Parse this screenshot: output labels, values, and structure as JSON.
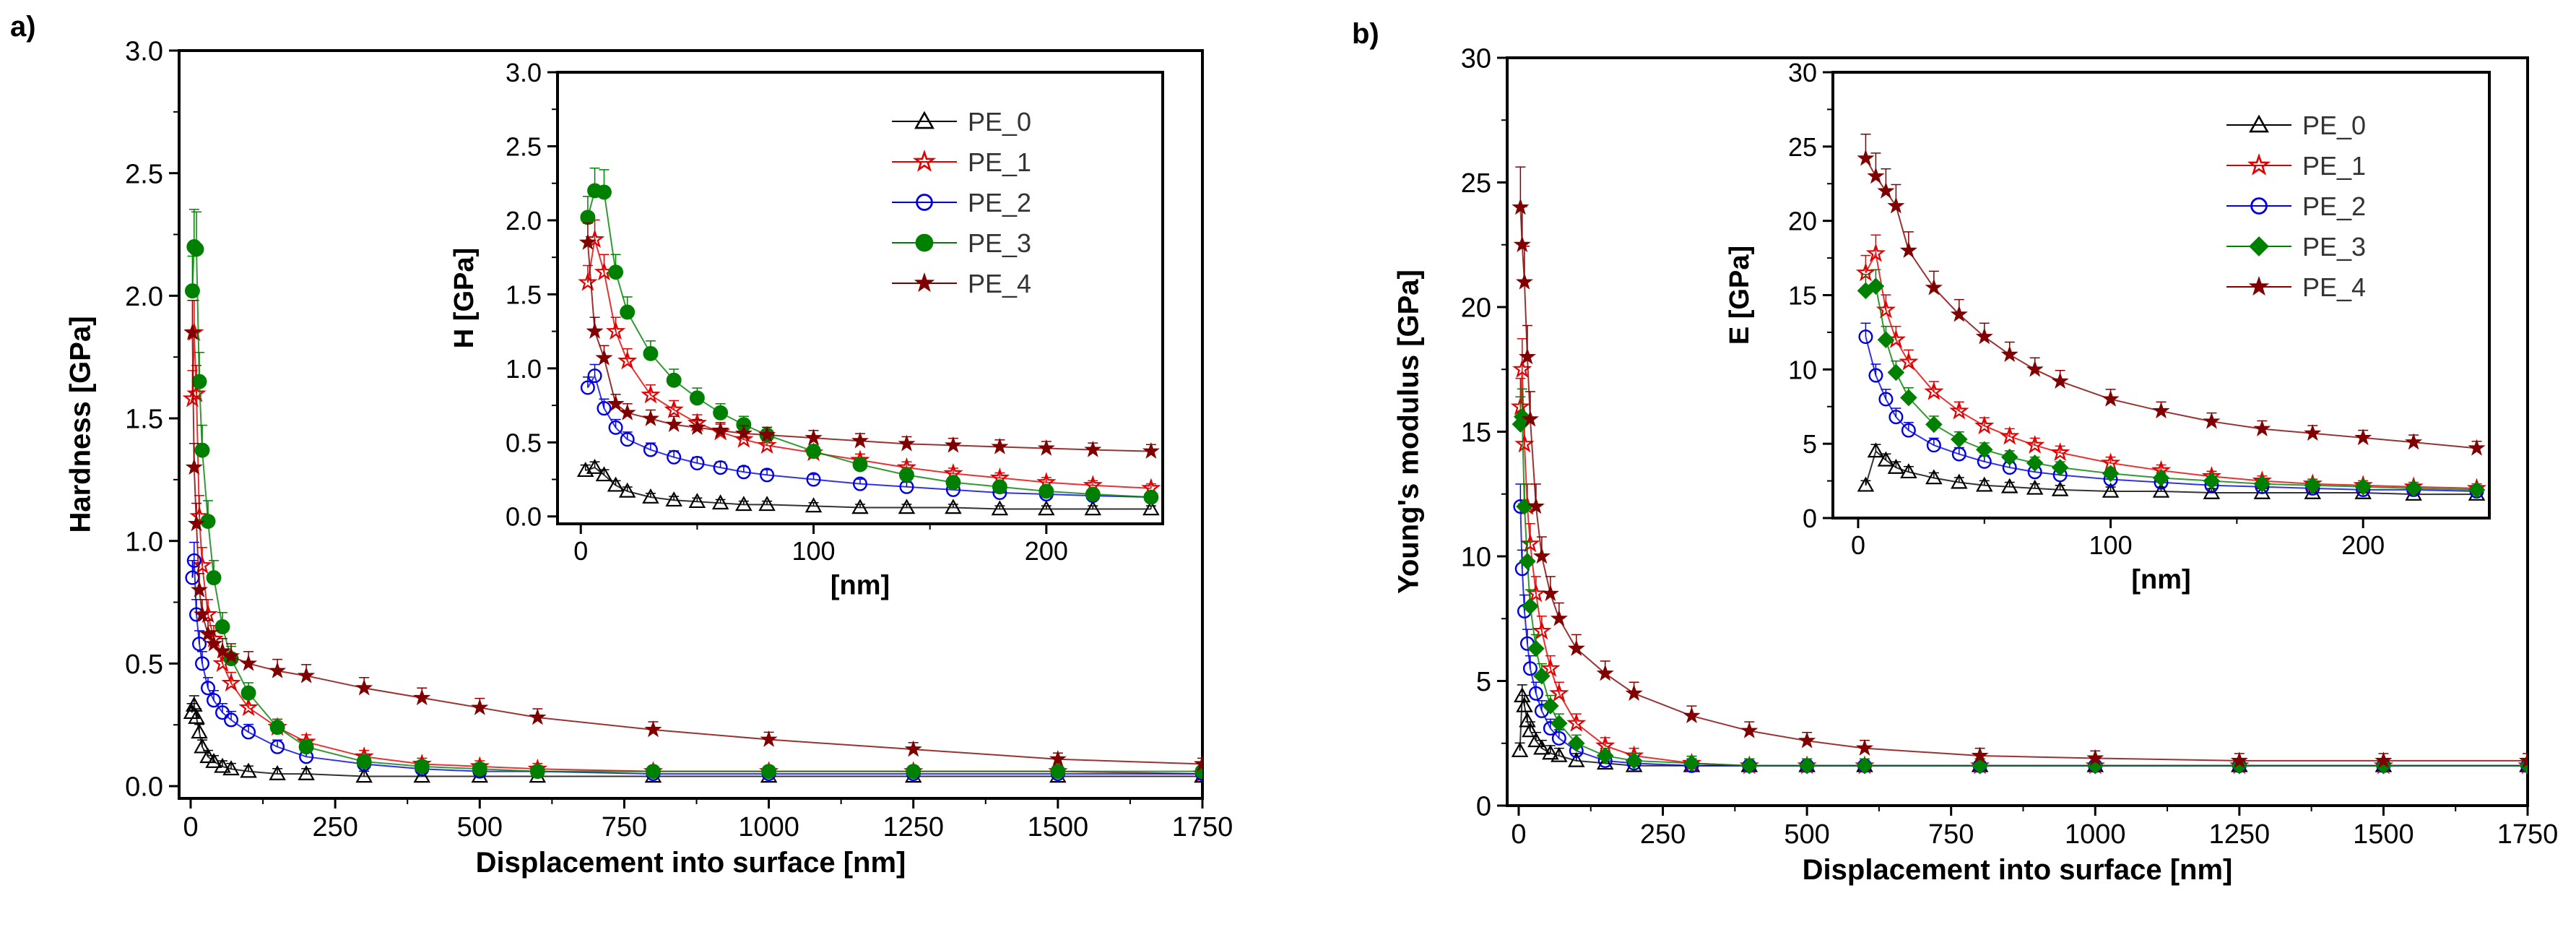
{
  "panels": [
    {
      "id": "a",
      "label": "a)"
    },
    {
      "id": "b",
      "label": "b)"
    }
  ],
  "legend_items": [
    {
      "name": "PE_0",
      "color": "#000000",
      "marker": "triangle-open-icon"
    },
    {
      "name": "PE_1",
      "color": "#e00000",
      "marker": "star-open-icon"
    },
    {
      "name": "PE_2",
      "color": "#0000e0",
      "marker": "circle-open-icon"
    },
    {
      "name": "PE_3",
      "color": "#008000",
      "marker": "circle-filled-icon"
    },
    {
      "name": "PE_4",
      "color": "#800000",
      "marker": "star-filled-icon"
    }
  ],
  "chart_data": [
    {
      "type": "scatter",
      "panel": "a",
      "title": "",
      "xlabel": "Displacement into surface [nm]",
      "ylabel": "Hardness [GPa]",
      "xlim": [
        -20,
        1750
      ],
      "ylim": [
        -0.05,
        3.0
      ],
      "xticks": [
        "0",
        "250",
        "500",
        "750",
        "1000",
        "1250",
        "1500",
        "1750"
      ],
      "yticks": [
        "0.0",
        "0.5",
        "1.0",
        "1.5",
        "2.0",
        "2.5",
        "3.0"
      ],
      "series": [
        {
          "name": "PE_0",
          "x": [
            2,
            6,
            10,
            15,
            20,
            30,
            40,
            55,
            70,
            100,
            150,
            200,
            300,
            400,
            500,
            600,
            800,
            1000,
            1250,
            1500,
            1750
          ],
          "y": [
            0.3,
            0.33,
            0.28,
            0.22,
            0.16,
            0.12,
            0.1,
            0.08,
            0.07,
            0.06,
            0.05,
            0.05,
            0.04,
            0.04,
            0.04,
            0.04,
            0.04,
            0.04,
            0.04,
            0.04,
            0.04
          ]
        },
        {
          "name": "PE_1",
          "x": [
            3,
            6,
            10,
            15,
            20,
            30,
            40,
            55,
            70,
            100,
            150,
            200,
            300,
            400,
            500,
            600,
            800,
            1000,
            1250,
            1500,
            1750
          ],
          "y": [
            1.58,
            1.85,
            1.6,
            1.1,
            0.9,
            0.7,
            0.6,
            0.5,
            0.42,
            0.32,
            0.24,
            0.18,
            0.12,
            0.09,
            0.08,
            0.07,
            0.06,
            0.06,
            0.06,
            0.06,
            0.05
          ]
        },
        {
          "name": "PE_2",
          "x": [
            3,
            6,
            10,
            15,
            20,
            30,
            40,
            55,
            70,
            100,
            150,
            200,
            300,
            400,
            500,
            600,
            800,
            1000,
            1250,
            1500,
            1750
          ],
          "y": [
            0.85,
            0.92,
            0.7,
            0.58,
            0.5,
            0.4,
            0.35,
            0.3,
            0.27,
            0.22,
            0.16,
            0.12,
            0.09,
            0.07,
            0.06,
            0.06,
            0.05,
            0.05,
            0.05,
            0.05,
            0.05
          ]
        },
        {
          "name": "PE_3",
          "x": [
            3,
            6,
            10,
            15,
            20,
            30,
            40,
            55,
            70,
            100,
            150,
            200,
            300,
            400,
            500,
            600,
            800,
            1000,
            1250,
            1500,
            1750
          ],
          "y": [
            2.02,
            2.2,
            2.19,
            1.65,
            1.37,
            1.08,
            0.85,
            0.65,
            0.52,
            0.38,
            0.24,
            0.16,
            0.1,
            0.08,
            0.07,
            0.06,
            0.06,
            0.06,
            0.06,
            0.06,
            0.06
          ]
        },
        {
          "name": "PE_4",
          "x": [
            3,
            6,
            10,
            15,
            20,
            30,
            40,
            55,
            70,
            100,
            150,
            200,
            300,
            400,
            500,
            600,
            800,
            1000,
            1250,
            1500,
            1750
          ],
          "y": [
            1.85,
            1.3,
            1.07,
            0.8,
            0.7,
            0.62,
            0.58,
            0.55,
            0.53,
            0.5,
            0.47,
            0.45,
            0.4,
            0.36,
            0.32,
            0.28,
            0.23,
            0.19,
            0.15,
            0.11,
            0.09
          ]
        }
      ],
      "inset": {
        "xlabel": "[nm]",
        "ylabel": "H [GPa]",
        "xlim": [
          -10,
          250
        ],
        "ylim": [
          -0.05,
          3.0
        ],
        "xticks": [
          "0",
          "100",
          "200"
        ],
        "yticks": [
          "0.0",
          "0.5",
          "1.0",
          "1.5",
          "2.0",
          "2.5",
          "3.0"
        ],
        "series": [
          {
            "name": "PE_0",
            "x": [
              2,
              6,
              10,
              15,
              20,
              30,
              40,
              50,
              60,
              70,
              80,
              100,
              120,
              140,
              160,
              180,
              200,
              220,
              245
            ],
            "y": [
              0.31,
              0.33,
              0.28,
              0.21,
              0.17,
              0.13,
              0.11,
              0.1,
              0.09,
              0.08,
              0.08,
              0.07,
              0.06,
              0.06,
              0.06,
              0.05,
              0.05,
              0.05,
              0.05
            ]
          },
          {
            "name": "PE_1",
            "x": [
              3,
              6,
              10,
              15,
              20,
              30,
              40,
              50,
              60,
              70,
              80,
              100,
              120,
              140,
              160,
              180,
              200,
              220,
              245
            ],
            "y": [
              1.58,
              1.87,
              1.65,
              1.25,
              1.05,
              0.82,
              0.72,
              0.63,
              0.57,
              0.52,
              0.48,
              0.43,
              0.38,
              0.33,
              0.29,
              0.26,
              0.23,
              0.21,
              0.19
            ]
          },
          {
            "name": "PE_2",
            "x": [
              3,
              6,
              10,
              15,
              20,
              30,
              40,
              50,
              60,
              70,
              80,
              100,
              120,
              140,
              160,
              180,
              200,
              220,
              245
            ],
            "y": [
              0.87,
              0.95,
              0.73,
              0.6,
              0.52,
              0.45,
              0.4,
              0.36,
              0.33,
              0.3,
              0.28,
              0.25,
              0.22,
              0.2,
              0.18,
              0.16,
              0.15,
              0.14,
              0.13
            ]
          },
          {
            "name": "PE_3",
            "x": [
              3,
              6,
              10,
              15,
              20,
              30,
              40,
              50,
              60,
              70,
              80,
              100,
              120,
              140,
              160,
              180,
              200,
              220,
              245
            ],
            "y": [
              2.02,
              2.2,
              2.19,
              1.65,
              1.38,
              1.1,
              0.92,
              0.8,
              0.7,
              0.62,
              0.55,
              0.44,
              0.35,
              0.28,
              0.23,
              0.2,
              0.17,
              0.15,
              0.13
            ]
          },
          {
            "name": "PE_4",
            "x": [
              3,
              6,
              10,
              15,
              20,
              30,
              40,
              50,
              60,
              70,
              80,
              100,
              120,
              140,
              160,
              180,
              200,
              220,
              245
            ],
            "y": [
              1.85,
              1.25,
              1.07,
              0.76,
              0.7,
              0.66,
              0.62,
              0.6,
              0.58,
              0.56,
              0.55,
              0.53,
              0.51,
              0.49,
              0.48,
              0.47,
              0.46,
              0.45,
              0.44
            ]
          }
        ]
      }
    },
    {
      "type": "scatter",
      "panel": "b",
      "title": "",
      "xlabel": "Displacement into surface [nm]",
      "ylabel": "Young's modulus [GPa]",
      "xlim": [
        -20,
        1750
      ],
      "ylim": [
        0,
        30
      ],
      "xticks": [
        "0",
        "250",
        "500",
        "750",
        "1000",
        "1250",
        "1500",
        "1750"
      ],
      "yticks": [
        "0",
        "5",
        "10",
        "15",
        "20",
        "25",
        "30"
      ],
      "series": [
        {
          "name": "PE_0",
          "x": [
            2,
            6,
            10,
            15,
            20,
            30,
            40,
            55,
            70,
            100,
            150,
            200,
            300,
            400,
            500,
            600,
            800,
            1000,
            1250,
            1500,
            1750
          ],
          "y": [
            2.2,
            4.4,
            4.0,
            3.4,
            3.0,
            2.6,
            2.3,
            2.1,
            2.0,
            1.8,
            1.7,
            1.6,
            1.6,
            1.6,
            1.6,
            1.6,
            1.6,
            1.6,
            1.6,
            1.6,
            1.6
          ]
        },
        {
          "name": "PE_1",
          "x": [
            3,
            6,
            10,
            15,
            20,
            30,
            40,
            55,
            70,
            100,
            150,
            200,
            300,
            400,
            500,
            600,
            800,
            1000,
            1250,
            1500,
            1750
          ],
          "y": [
            16.0,
            17.5,
            14.5,
            12.0,
            10.5,
            8.5,
            7.0,
            5.5,
            4.5,
            3.3,
            2.4,
            2.0,
            1.7,
            1.6,
            1.6,
            1.6,
            1.6,
            1.6,
            1.6,
            1.6,
            1.6
          ]
        },
        {
          "name": "PE_2",
          "x": [
            3,
            6,
            10,
            15,
            20,
            30,
            40,
            55,
            70,
            100,
            150,
            200,
            300,
            400,
            500,
            600,
            800,
            1000,
            1250,
            1500,
            1750
          ],
          "y": [
            12.0,
            9.5,
            7.8,
            6.5,
            5.5,
            4.5,
            3.8,
            3.1,
            2.7,
            2.2,
            1.8,
            1.7,
            1.6,
            1.6,
            1.6,
            1.6,
            1.6,
            1.6,
            1.6,
            1.6,
            1.6
          ]
        },
        {
          "name": "PE_3",
          "x": [
            3,
            6,
            10,
            15,
            20,
            30,
            40,
            55,
            70,
            100,
            150,
            200,
            300,
            400,
            500,
            600,
            800,
            1000,
            1250,
            1500,
            1750
          ],
          "y": [
            15.3,
            15.6,
            12.0,
            9.8,
            8.0,
            6.3,
            5.2,
            4.0,
            3.3,
            2.5,
            2.0,
            1.8,
            1.7,
            1.6,
            1.6,
            1.6,
            1.6,
            1.6,
            1.6,
            1.6,
            1.6
          ]
        },
        {
          "name": "PE_4",
          "x": [
            3,
            6,
            10,
            15,
            20,
            30,
            40,
            55,
            70,
            100,
            150,
            200,
            300,
            400,
            500,
            600,
            800,
            1000,
            1250,
            1500,
            1750
          ],
          "y": [
            24.0,
            22.5,
            21.0,
            18.0,
            15.5,
            12.0,
            10.0,
            8.5,
            7.5,
            6.3,
            5.3,
            4.5,
            3.6,
            3.0,
            2.6,
            2.3,
            2.0,
            1.9,
            1.8,
            1.8,
            1.8
          ]
        }
      ],
      "inset": {
        "xlabel": "[nm]",
        "ylabel": "E [GPa]",
        "xlim": [
          -10,
          250
        ],
        "ylim": [
          0,
          30
        ],
        "xticks": [
          "0",
          "100",
          "200"
        ],
        "yticks": [
          "0",
          "5",
          "10",
          "15",
          "20",
          "25",
          "30"
        ],
        "series": [
          {
            "name": "PE_0",
            "x": [
              3,
              7,
              11,
              15,
              20,
              30,
              40,
              50,
              60,
              70,
              80,
              100,
              120,
              140,
              160,
              180,
              200,
              220,
              245
            ],
            "y": [
              2.2,
              4.5,
              3.9,
              3.4,
              3.1,
              2.7,
              2.4,
              2.2,
              2.1,
              2.0,
              1.9,
              1.8,
              1.8,
              1.7,
              1.7,
              1.7,
              1.7,
              1.6,
              1.6
            ]
          },
          {
            "name": "PE_1",
            "x": [
              3,
              7,
              11,
              15,
              20,
              30,
              40,
              50,
              60,
              70,
              80,
              100,
              120,
              140,
              160,
              180,
              200,
              220,
              245
            ],
            "y": [
              16.5,
              17.8,
              14.0,
              12.0,
              10.5,
              8.5,
              7.2,
              6.2,
              5.5,
              4.9,
              4.4,
              3.7,
              3.2,
              2.8,
              2.5,
              2.3,
              2.2,
              2.1,
              2.0
            ]
          },
          {
            "name": "PE_2",
            "x": [
              3,
              7,
              11,
              15,
              20,
              30,
              40,
              50,
              60,
              70,
              80,
              100,
              120,
              140,
              160,
              180,
              200,
              220,
              245
            ],
            "y": [
              12.2,
              9.6,
              8.0,
              6.8,
              5.9,
              4.9,
              4.3,
              3.8,
              3.4,
              3.1,
              2.9,
              2.6,
              2.4,
              2.2,
              2.1,
              2.0,
              1.9,
              1.9,
              1.8
            ]
          },
          {
            "name": "PE_3",
            "x": [
              3,
              7,
              11,
              15,
              20,
              30,
              40,
              50,
              60,
              70,
              80,
              100,
              120,
              140,
              160,
              180,
              200,
              220,
              245
            ],
            "y": [
              15.3,
              15.6,
              12.0,
              9.8,
              8.1,
              6.3,
              5.3,
              4.6,
              4.1,
              3.7,
              3.4,
              3.0,
              2.7,
              2.5,
              2.3,
              2.2,
              2.1,
              2.0,
              1.9
            ]
          },
          {
            "name": "PE_4",
            "x": [
              3,
              7,
              11,
              15,
              20,
              30,
              40,
              50,
              60,
              70,
              80,
              100,
              120,
              140,
              160,
              180,
              200,
              220,
              245
            ],
            "y": [
              24.2,
              23.0,
              22.0,
              21.0,
              18.0,
              15.5,
              13.7,
              12.2,
              11.0,
              10.0,
              9.2,
              8.0,
              7.2,
              6.5,
              6.0,
              5.7,
              5.4,
              5.1,
              4.7
            ]
          }
        ]
      }
    }
  ]
}
